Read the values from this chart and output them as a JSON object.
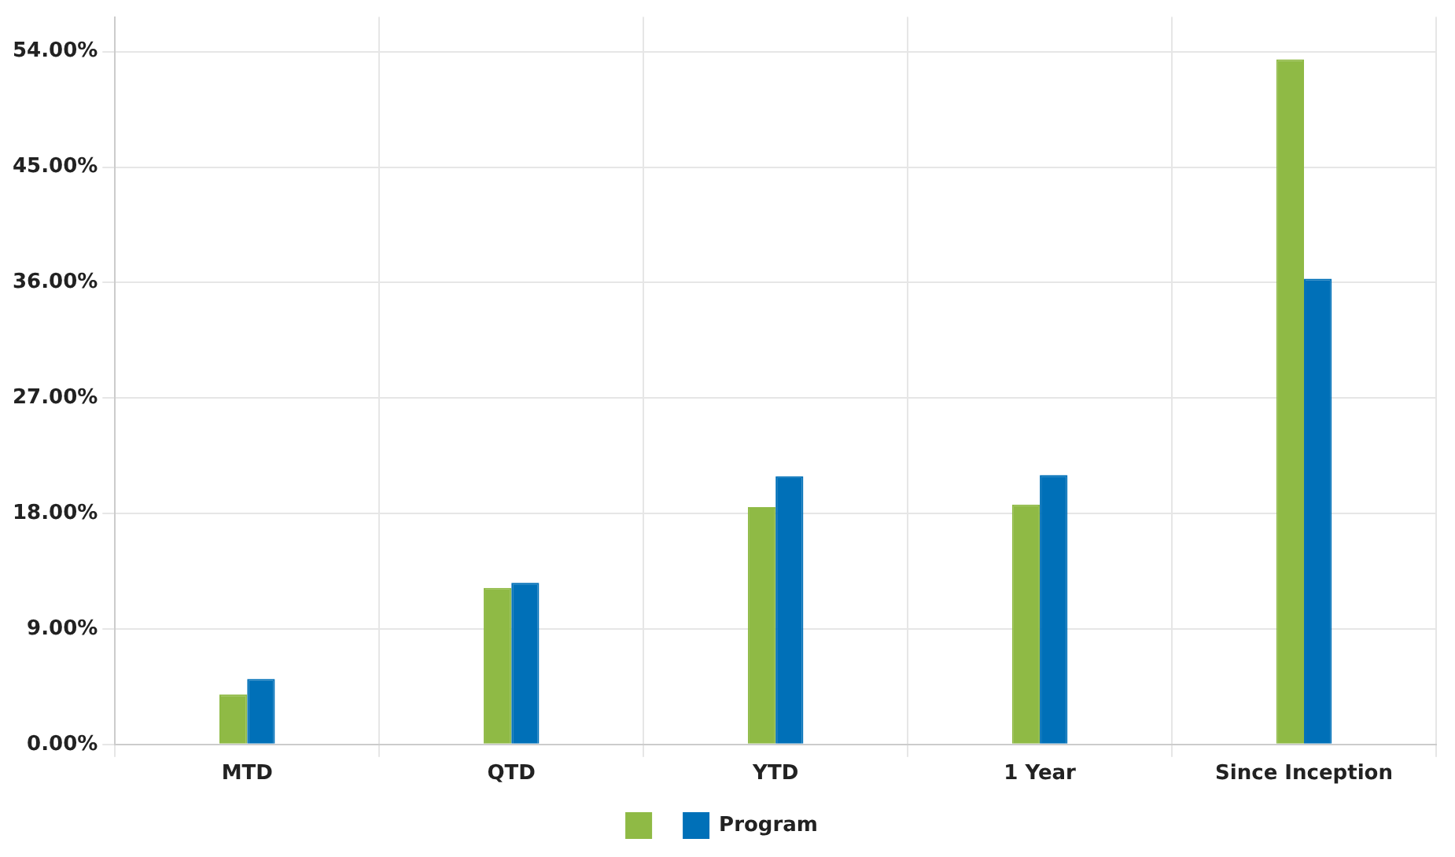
{
  "chart_data": {
    "type": "bar",
    "categories": [
      "MTD",
      "QTD",
      "YTD",
      "1 Year",
      "Since Inception"
    ],
    "series": [
      {
        "color": "#8fba45",
        "values": [
          3.9,
          12.2,
          18.5,
          18.7,
          53.4
        ]
      },
      {
        "name": "Program",
        "color": "#0070b8",
        "values": [
          5.1,
          12.6,
          20.9,
          21.0,
          36.3
        ]
      }
    ],
    "ylim": [
      0,
      56.7
    ],
    "yticks": [
      {
        "value": 0,
        "label": "0.00%"
      },
      {
        "value": 9,
        "label": "9.00%"
      },
      {
        "value": 18,
        "label": "18.00%"
      },
      {
        "value": 27,
        "label": "27.00%"
      },
      {
        "value": 36,
        "label": "36.00%"
      },
      {
        "value": 45,
        "label": "45.00%"
      },
      {
        "value": 54,
        "label": "54.00%"
      }
    ],
    "grid": true,
    "legend": "bottom"
  }
}
